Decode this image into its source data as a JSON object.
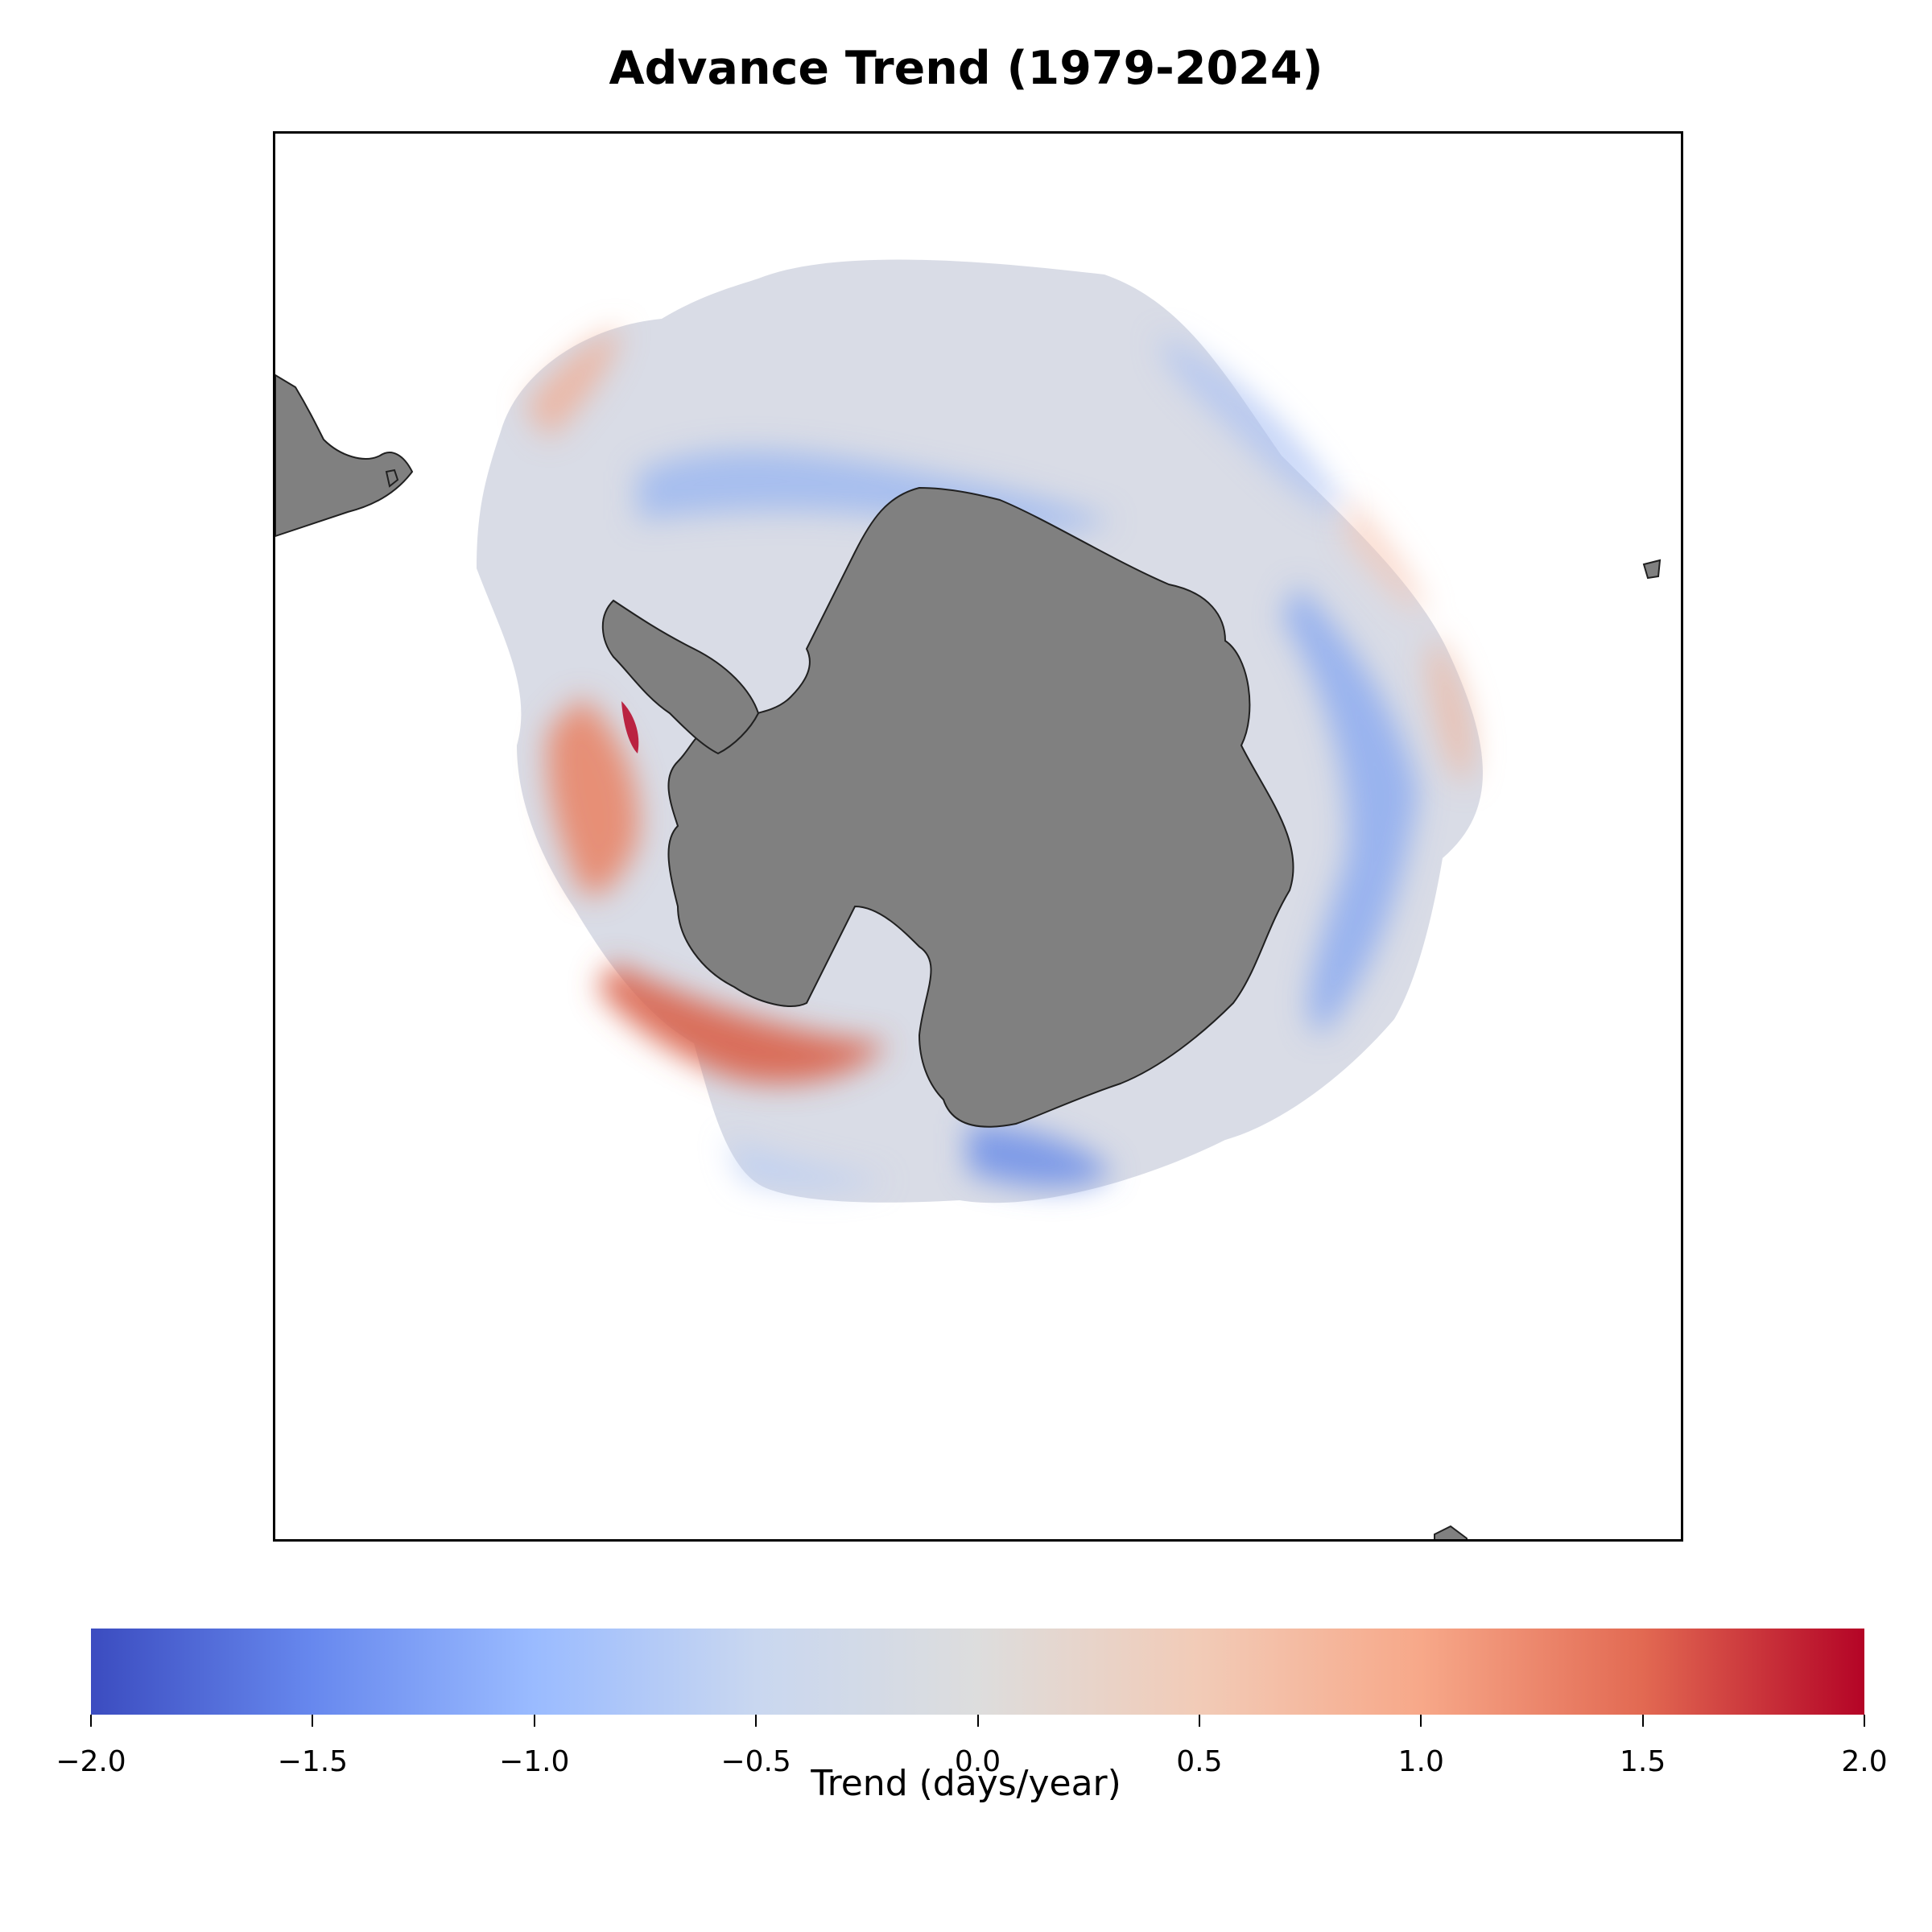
{
  "title": "Advance Trend (1979-2024)",
  "map": {
    "projection": "south-polar-stereographic",
    "land_color": "#808080",
    "ocean_color": "#ffffff",
    "field": "sea-ice advance trend",
    "regions": [
      {
        "name": "ross-sea-west",
        "value": 1.2
      },
      {
        "name": "antarctic-peninsula-west",
        "value": 1.3
      },
      {
        "name": "weddell-sea",
        "value": 0.0
      },
      {
        "name": "east-antarctica-coast",
        "value": -0.6
      },
      {
        "name": "amundsen-sea",
        "value": -0.8
      }
    ]
  },
  "colorbar": {
    "cmap": "coolwarm",
    "min": -2.0,
    "max": 2.0,
    "colors": [
      "#3b4cc0",
      "#6788ee",
      "#9abbff",
      "#c9d7f0",
      "#dddddd",
      "#f2cbb7",
      "#f7a889",
      "#e26952",
      "#b40426"
    ],
    "ticks": [
      "−2.0",
      "−1.5",
      "−1.0",
      "−0.5",
      "0.0",
      "0.5",
      "1.0",
      "1.5",
      "2.0"
    ],
    "label": "Trend (days/year)"
  }
}
